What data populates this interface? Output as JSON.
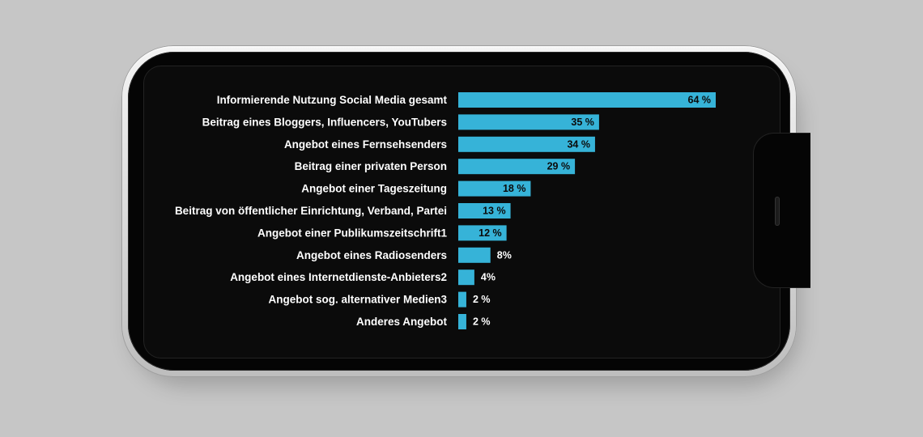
{
  "chart_data": {
    "type": "bar",
    "orientation": "horizontal",
    "bar_color": "#36b3d8",
    "categories": [
      "Informierende Nutzung Social Media gesamt",
      "Beitrag eines Bloggers, Influencers, YouTubers",
      "Angebot eines Fernsehsenders",
      "Beitrag einer privaten Person",
      "Angebot einer Tageszeitung",
      "Beitrag von öffentlicher Einrichtung, Verband, Partei",
      "Angebot einer Publikumszeitschrift1",
      "Angebot eines Radiosenders",
      "Angebot eines Internetdienste-Anbieters2",
      "Angebot sog. alternativer Medien3",
      "Anderes Angebot"
    ],
    "values": [
      64,
      35,
      34,
      29,
      18,
      13,
      12,
      8,
      4,
      2,
      2
    ],
    "value_labels": [
      "64 %",
      "35 %",
      "34 %",
      "29 %",
      "18 %",
      "13 %",
      "12 %",
      "8%",
      "4%",
      "2 %",
      "2 %"
    ],
    "xlim": [
      0,
      64
    ]
  }
}
